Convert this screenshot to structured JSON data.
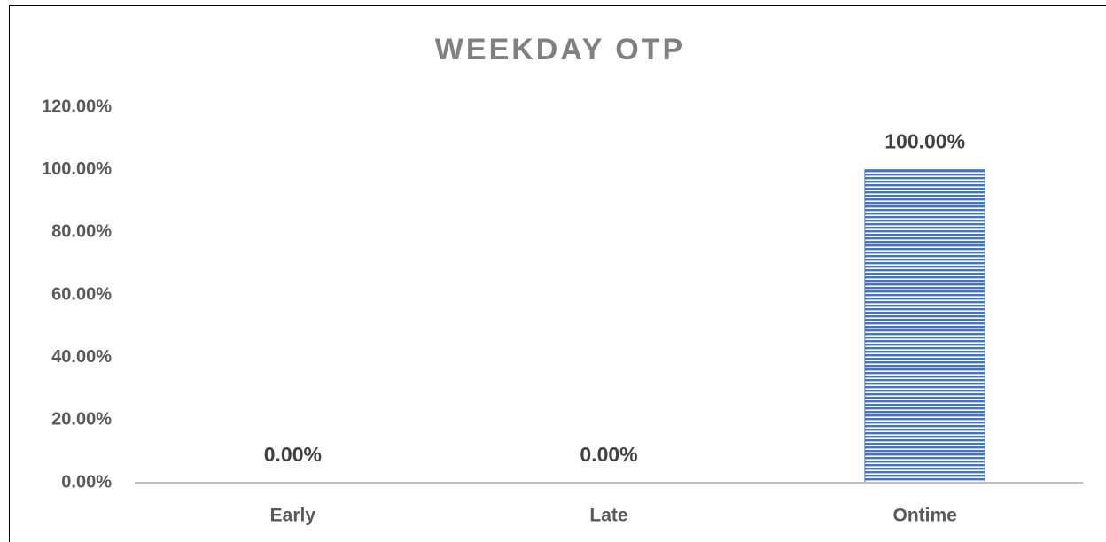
{
  "chart_data": {
    "type": "bar",
    "title": "WEEKDAY OTP",
    "categories": [
      "Early",
      "Late",
      "Ontime"
    ],
    "values": [
      0,
      0,
      100
    ],
    "value_labels": [
      "0.00%",
      "0.00%",
      "100.00%"
    ],
    "color": "#4472c4",
    "ylim": [
      0,
      120
    ],
    "yticks": [
      {
        "value": 0,
        "label": "0.00%"
      },
      {
        "value": 20,
        "label": "20.00%"
      },
      {
        "value": 40,
        "label": "40.00%"
      },
      {
        "value": 60,
        "label": "60.00%"
      },
      {
        "value": 80,
        "label": "80.00%"
      },
      {
        "value": 100,
        "label": "100.00%"
      },
      {
        "value": 120,
        "label": "120.00%"
      }
    ],
    "grid": false
  }
}
